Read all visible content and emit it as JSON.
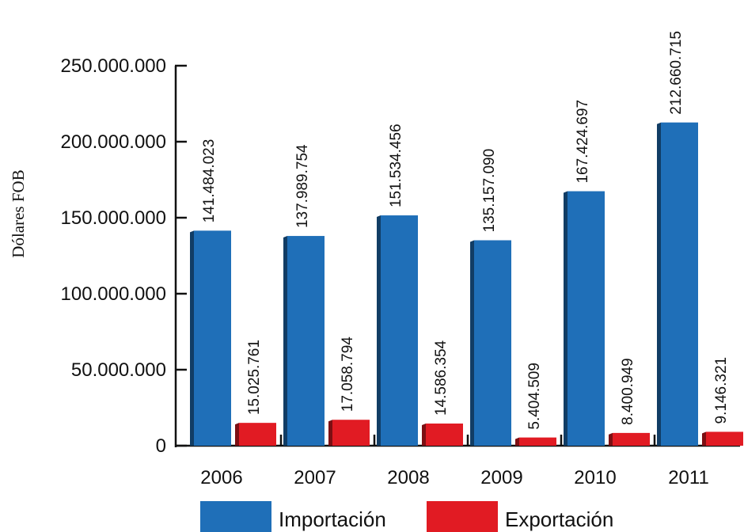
{
  "chart_data": {
    "type": "bar",
    "categories": [
      "2006",
      "2007",
      "2008",
      "2009",
      "2010",
      "2011"
    ],
    "series": [
      {
        "name": "Importación",
        "values": [
          141484023,
          137989754,
          151534456,
          135157090,
          167424697,
          212660715
        ],
        "labels": [
          "141.484.023",
          "137.989.754",
          "151.534.456",
          "135.157.090",
          "167.424.697",
          "212.660.715"
        ],
        "color": "#1f6fb8"
      },
      {
        "name": "Exportación",
        "values": [
          15025761,
          17058794,
          14586354,
          5404509,
          8400949,
          9146321
        ],
        "labels": [
          "15.025.761",
          "17.058.794",
          "14.586.354",
          "5.404.509",
          "8.400.949",
          "9.146.321"
        ],
        "color": "#e11b23"
      }
    ],
    "ylabel": "Dólares FOB",
    "ylim": [
      0,
      250000000
    ],
    "yticks": [
      0,
      50000000,
      100000000,
      150000000,
      200000000,
      250000000
    ],
    "ytick_labels": [
      "0",
      "50.000.000",
      "100.000.000",
      "150.000.000",
      "200.000.000",
      "250.000.000"
    ],
    "grid": false,
    "legend_position": "bottom-center"
  }
}
